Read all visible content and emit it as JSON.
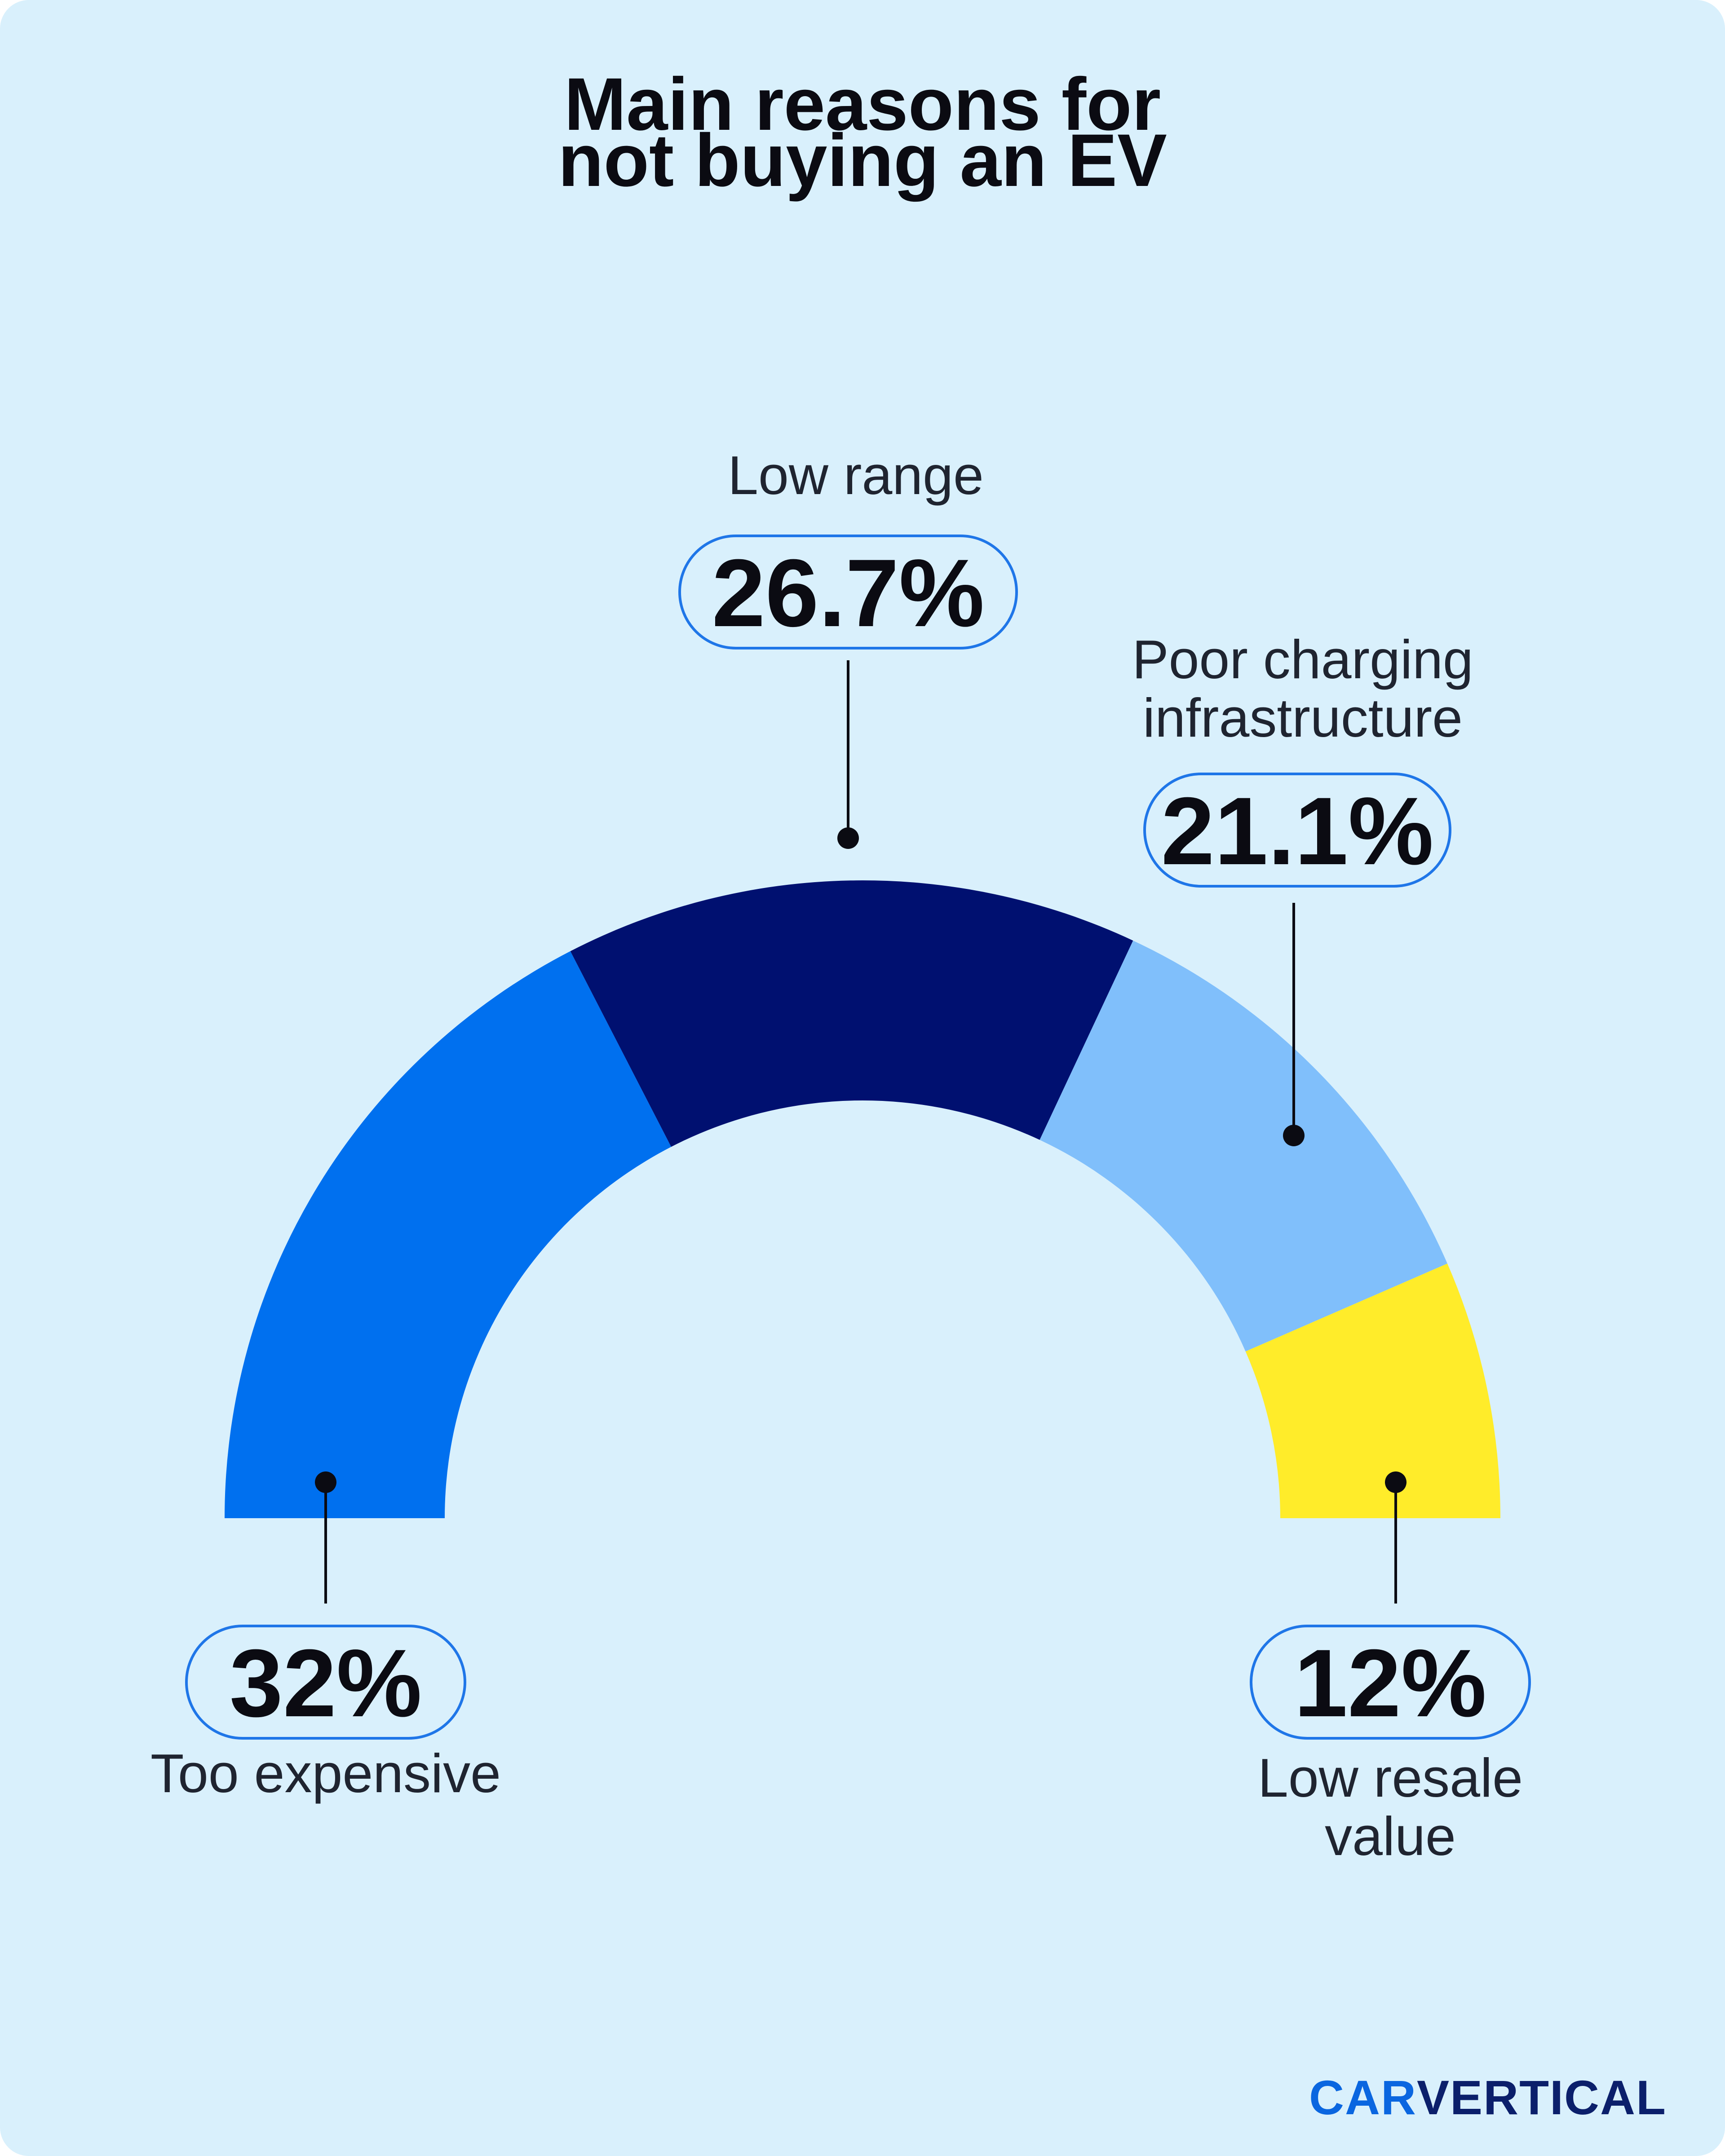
{
  "title": [
    "Main reasons for",
    "not buying an EV"
  ],
  "brand": {
    "part1": "CAR",
    "part2": "VERTICAL"
  },
  "chart_data": {
    "type": "pie",
    "variant": "semicircle",
    "title": "Main reasons for not buying an EV",
    "unit": "%",
    "slices": [
      {
        "label": [
          "Too expensive"
        ],
        "value": 32,
        "value_label": "32%",
        "color": "#0070ef"
      },
      {
        "label": [
          "Low range"
        ],
        "value": 26.7,
        "value_label": "26.7%",
        "color": "#001070"
      },
      {
        "label": [
          "Poor charging",
          "infrastructure"
        ],
        "value": 21.1,
        "value_label": "21.1%",
        "color": "#80bffb"
      },
      {
        "label": [
          "Low resale",
          "value"
        ],
        "value": 12,
        "value_label": "12%",
        "color": "#ffec2a"
      }
    ],
    "legend": "none"
  },
  "colors": {
    "background": "#d9f0fc",
    "pill_border": "#1f76e8",
    "leader": "#0b0b12"
  }
}
